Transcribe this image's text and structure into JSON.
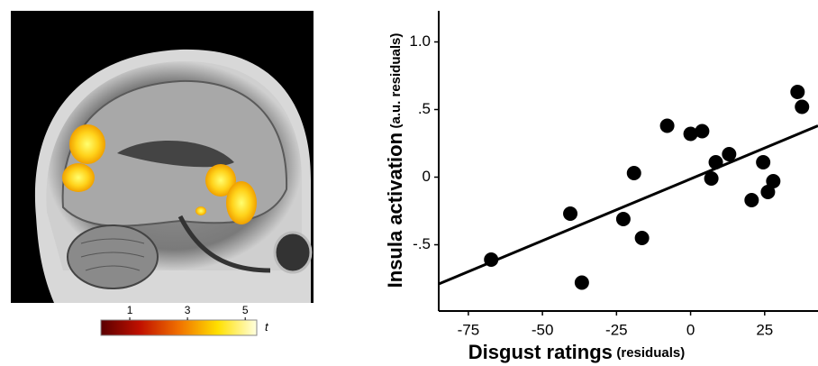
{
  "chart_data": [
    {
      "type": "colorbar",
      "label": "t",
      "lim": [
        0,
        5.4
      ],
      "ticks": [
        1,
        3,
        5
      ]
    },
    {
      "type": "scatter",
      "x_label": "Disgust ratings",
      "x_label_unit": "(residuals)",
      "y_label": "Insula activation",
      "y_label_unit": "(a.u. residuals)",
      "x": [
        -67.3,
        -40.6,
        -36.7,
        -22.7,
        -19.1,
        -16.4,
        -7.9,
        0,
        3.9,
        7.0,
        8.5,
        13.0,
        20.6,
        24.5,
        26.1,
        27.9,
        36.1,
        37.6
      ],
      "values": [
        -0.61,
        -0.27,
        -0.78,
        -0.31,
        0.03,
        -0.45,
        0.38,
        0.32,
        0.34,
        -0.01,
        0.11,
        0.17,
        -0.17,
        0.11,
        -0.11,
        -0.03,
        0.63,
        0.52
      ],
      "color": "#000000",
      "fit_line": {
        "x": [
          -85,
          43
        ],
        "y": [
          -0.79,
          0.38
        ]
      },
      "xlim": [
        -85,
        43
      ],
      "ylim": [
        -0.99,
        1.23
      ],
      "xticks": [
        -75,
        -50,
        -25,
        0,
        25
      ],
      "yticks": [
        {
          "value": 1,
          "label": "1.0"
        },
        {
          "value": 0.5,
          "label": ".5"
        },
        0,
        {
          "value": -0.5,
          "label": "-.5"
        }
      ]
    }
  ]
}
